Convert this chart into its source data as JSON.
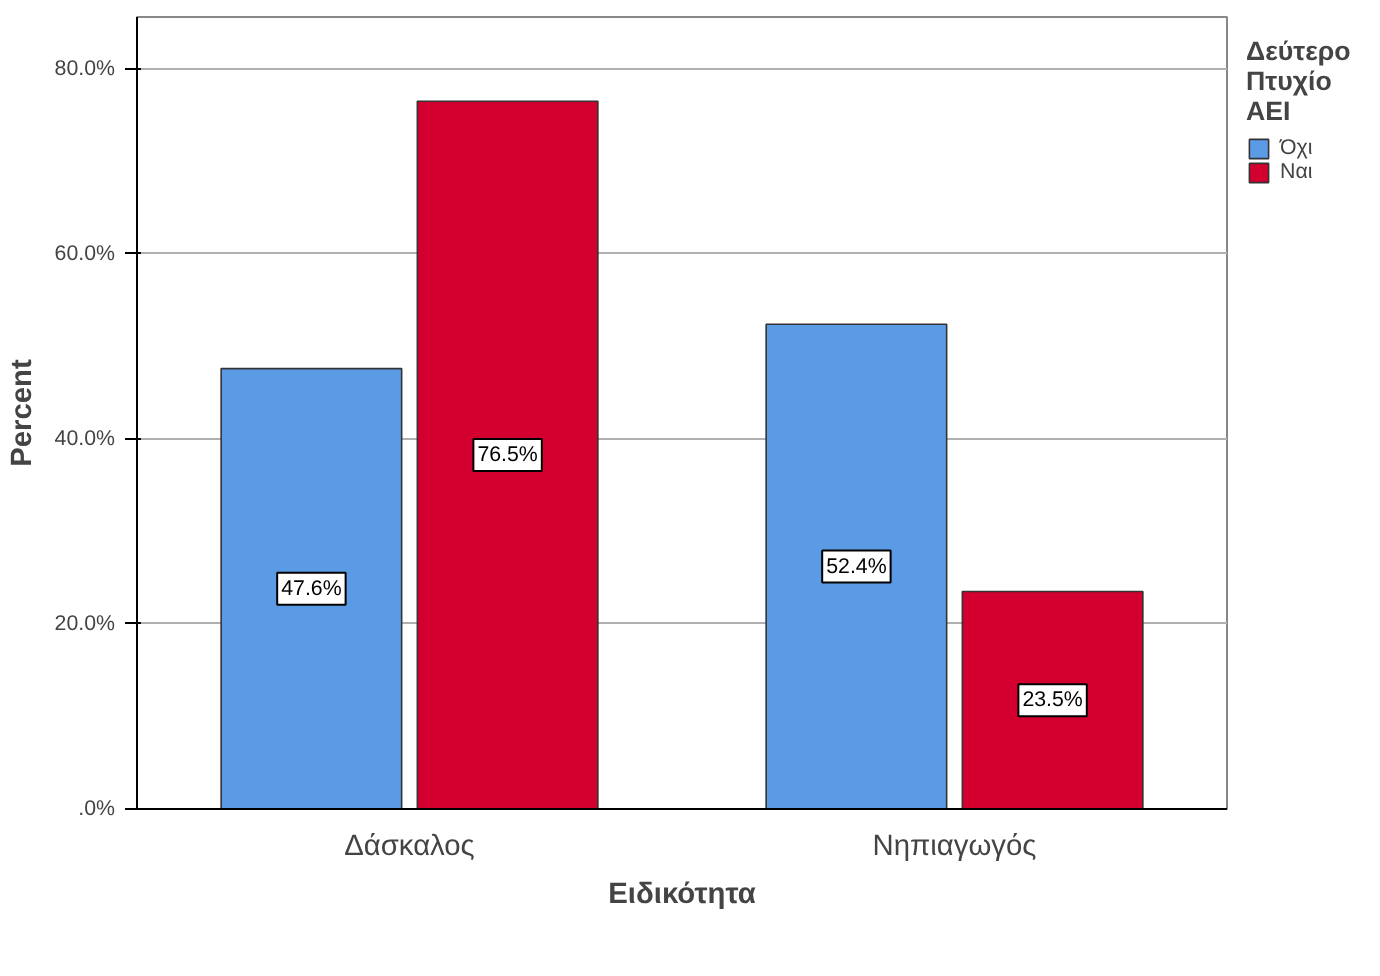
{
  "chart_data": {
    "type": "bar",
    "xlabel": "Ειδικότητα",
    "ylabel": "Percent",
    "legend_title": "Δεύτερο Πτυχίο ΑΕΙ",
    "categories": [
      "Δάσκαλος",
      "Νηπιαγωγός"
    ],
    "series": [
      {
        "name": "Όχι",
        "color": "#5b9be6",
        "values": [
          47.6,
          52.4
        ],
        "value_labels": [
          "47.6%",
          "52.4%"
        ]
      },
      {
        "name": "Ναι",
        "color": "#d3002f",
        "values": [
          76.5,
          23.5
        ],
        "value_labels": [
          "76.5%",
          "23.5%"
        ]
      }
    ],
    "ylim": [
      0,
      85.6
    ],
    "yticks": [
      {
        "value": 0,
        "label": ".0%"
      },
      {
        "value": 20,
        "label": "20.0%"
      },
      {
        "value": 40,
        "label": "40.0%"
      },
      {
        "value": 60,
        "label": "60.0%"
      },
      {
        "value": 80,
        "label": "80.0%"
      }
    ],
    "grid": "y",
    "legend": "top right"
  }
}
